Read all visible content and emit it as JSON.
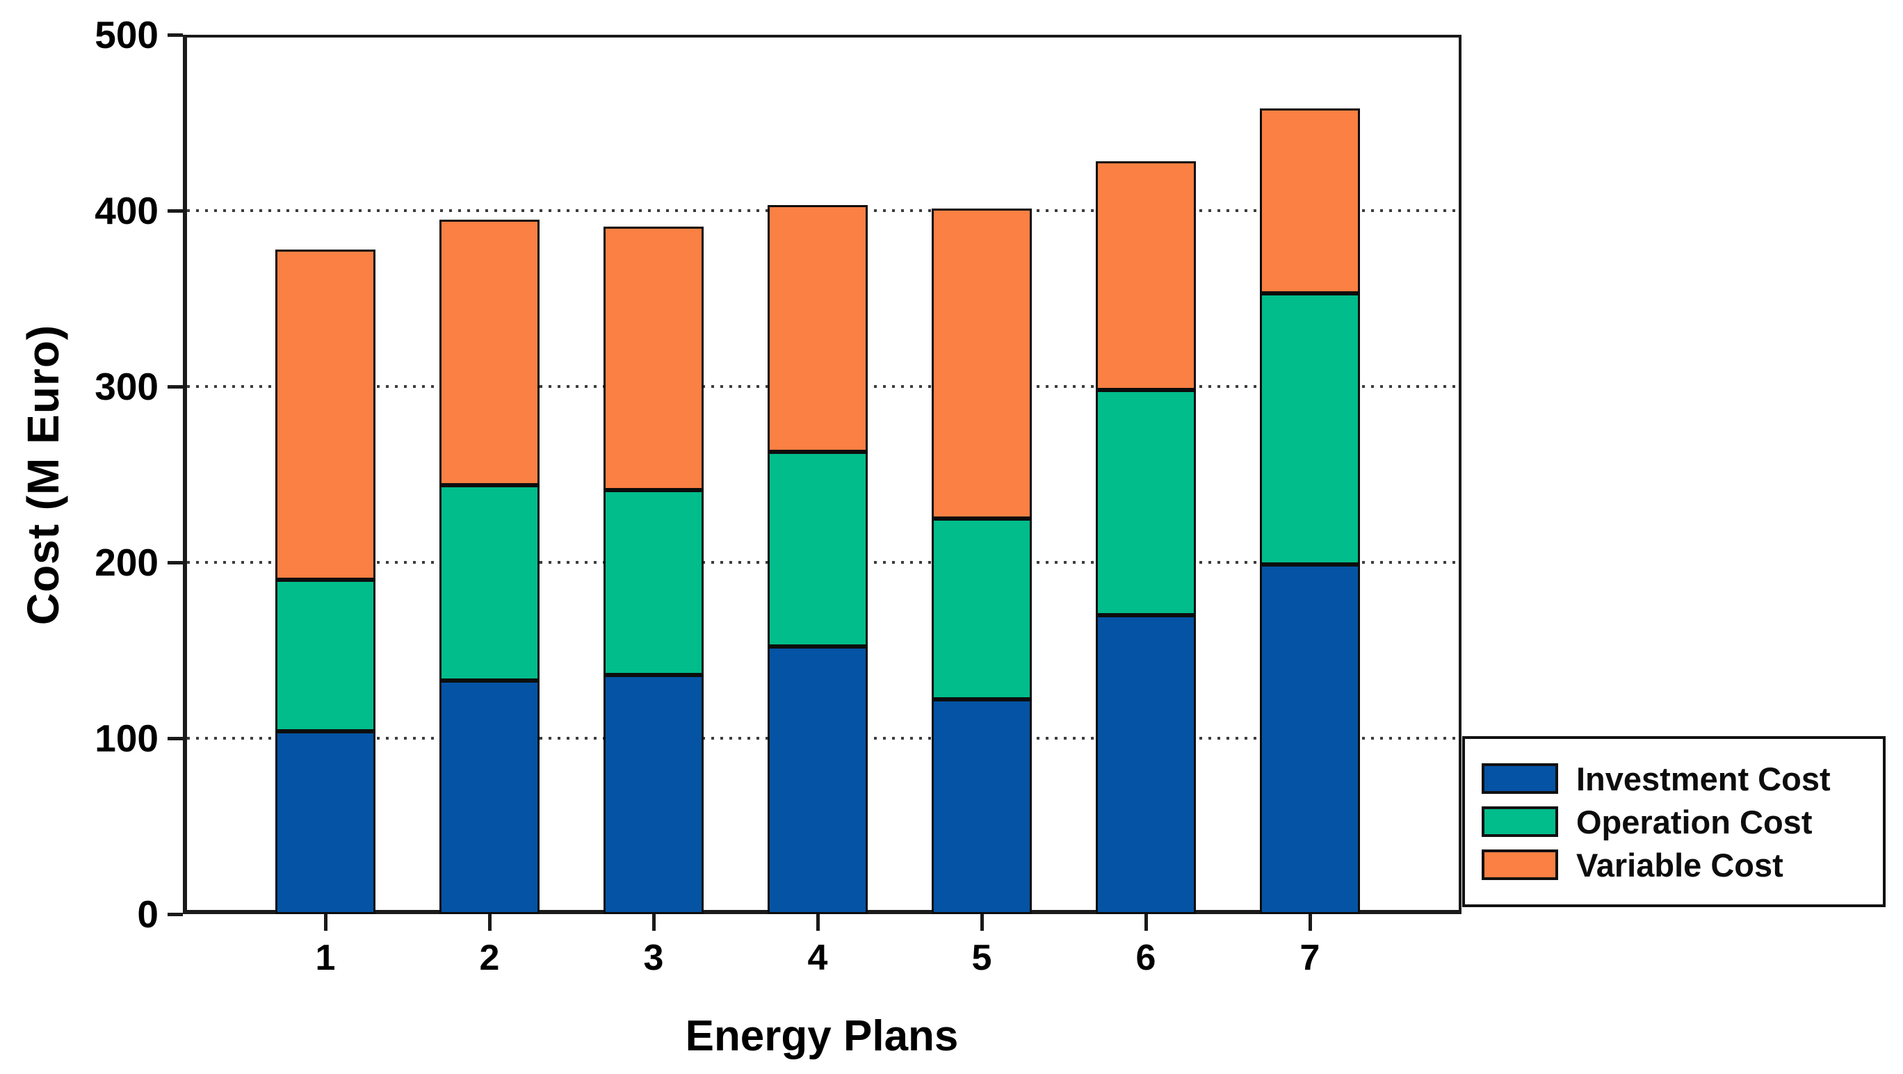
{
  "chart_data": {
    "type": "bar",
    "stacked": true,
    "title": "",
    "xlabel": "Energy Plans",
    "ylabel": "Cost (M Euro)",
    "categories": [
      "1",
      "2",
      "3",
      "4",
      "5",
      "6",
      "7"
    ],
    "series": [
      {
        "name": "Investment Cost",
        "color": "#0553a4",
        "values": [
          104,
          133,
          136,
          152,
          122,
          170,
          199
        ]
      },
      {
        "name": "Operation Cost",
        "color": "#00bd8b",
        "values": [
          86,
          111,
          105,
          111,
          103,
          128,
          154
        ]
      },
      {
        "name": "Variable Cost",
        "color": "#fb8043",
        "values": [
          188,
          151,
          150,
          140,
          176,
          130,
          105
        ]
      }
    ],
    "stack_totals": [
      378,
      395,
      391,
      403,
      401,
      428,
      458
    ],
    "ylim": [
      0,
      500
    ],
    "yticks": [
      0,
      100,
      200,
      300,
      400,
      500
    ],
    "gridlines": {
      "values": [
        100,
        200,
        300,
        400
      ],
      "style": "dotted"
    },
    "legend_position": "outside-right-bottom"
  },
  "colors": {
    "axis": "#1a1a1a",
    "grid": "#3d3d3d",
    "background": "#ffffff",
    "bar_border": "#0d0d0d"
  }
}
